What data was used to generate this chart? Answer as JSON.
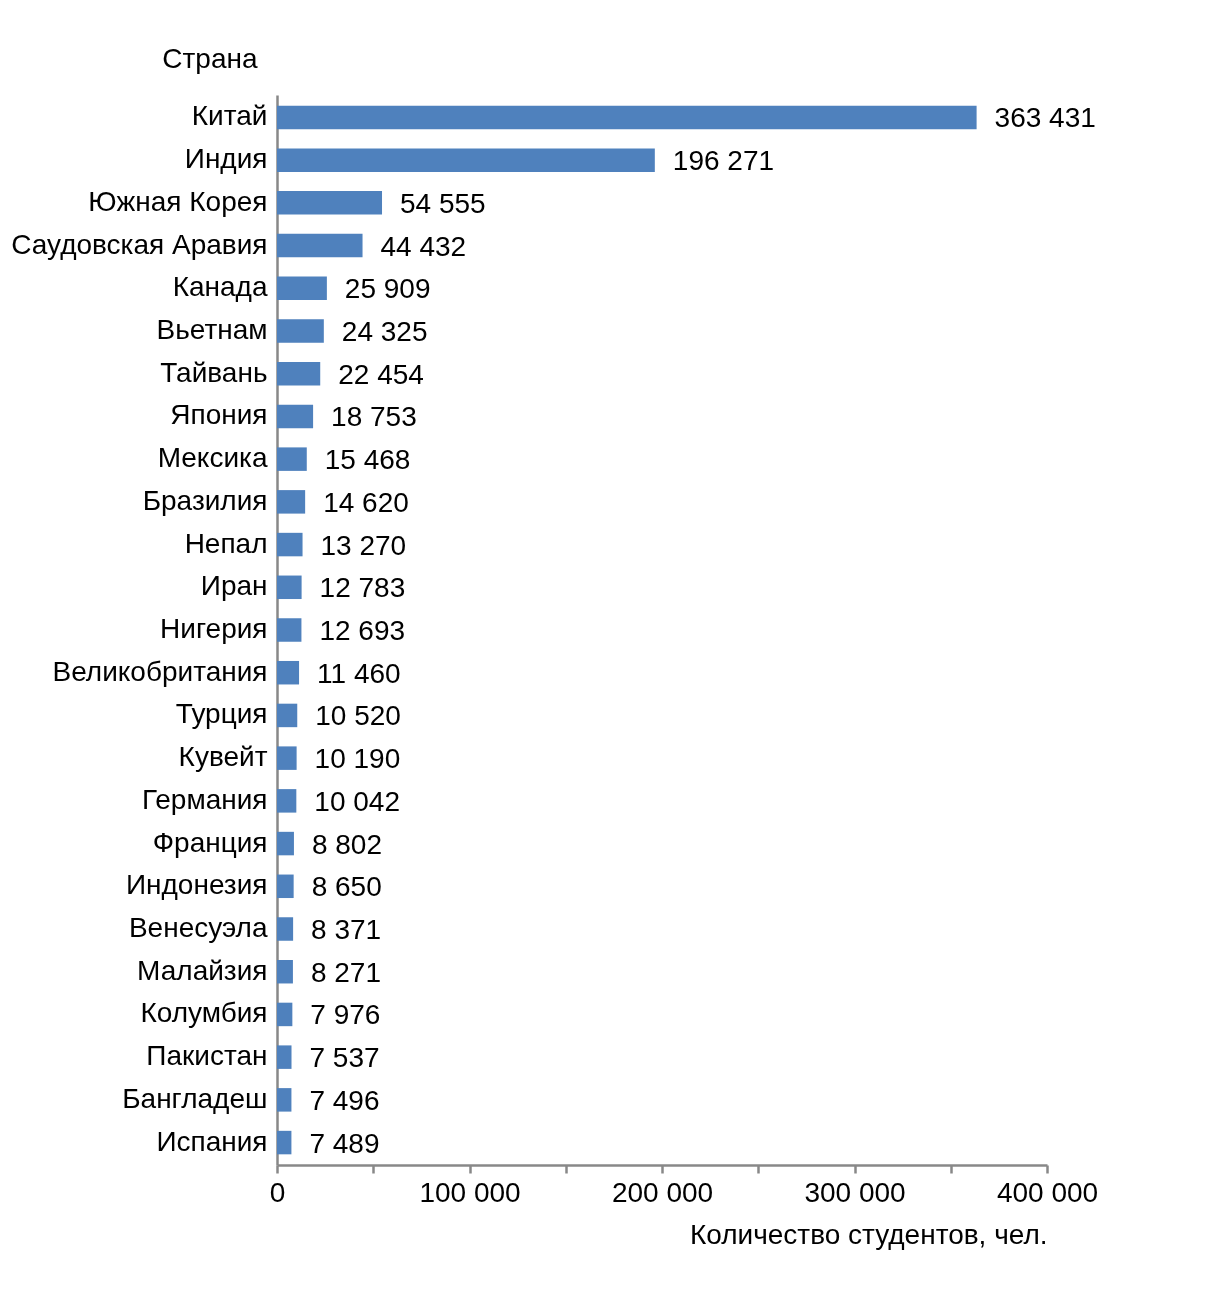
{
  "chart_data": {
    "type": "bar",
    "orientation": "horizontal",
    "xlabel": "Количество студентов, чел.",
    "ylabel": "Страна",
    "color": "#4f81bd",
    "categories": [
      "Китай",
      "Индия",
      "Южная Корея",
      "Саудовская Аравия",
      "Канада",
      "Вьетнам",
      "Тайвань",
      "Япония",
      "Мексика",
      "Бразилия",
      "Непал",
      "Иран",
      "Нигерия",
      "Великобритания",
      "Турция",
      "Кувейт",
      "Германия",
      "Франция",
      "Индонезия",
      "Венесуэла",
      "Малайзия",
      "Колумбия",
      "Пакистан",
      "Бангладеш",
      "Испания"
    ],
    "values": [
      363431,
      196271,
      54555,
      44432,
      25909,
      24325,
      22454,
      18753,
      15468,
      14620,
      13270,
      12783,
      12693,
      11460,
      10520,
      10190,
      10042,
      8802,
      8650,
      8371,
      8271,
      7976,
      7537,
      7496,
      7489
    ],
    "value_labels": [
      "363 431",
      "196 271",
      "54 555",
      "44 432",
      "25 909",
      "24 325",
      "22 454",
      "18 753",
      "15 468",
      "14 620",
      "13 270",
      "12 783",
      "12 693",
      "11 460",
      "10 520",
      "10 190",
      "10 042",
      "8 802",
      "8 650",
      "8 371",
      "8 271",
      "7 976",
      "7 537",
      "7 496",
      "7 489"
    ],
    "xlim": [
      0,
      400000
    ],
    "xticks": [
      0,
      {
        "value": 50000,
        "label": null
      },
      {
        "value": 100000,
        "label": "100 000"
      },
      {
        "value": 150000,
        "label": null
      },
      {
        "value": 200000,
        "label": "200 000"
      },
      {
        "value": 250000,
        "label": null
      },
      {
        "value": 300000,
        "label": "300 000"
      },
      {
        "value": 350000,
        "label": null
      },
      {
        "value": 400000,
        "label": "400 000"
      }
    ],
    "grid": false
  }
}
